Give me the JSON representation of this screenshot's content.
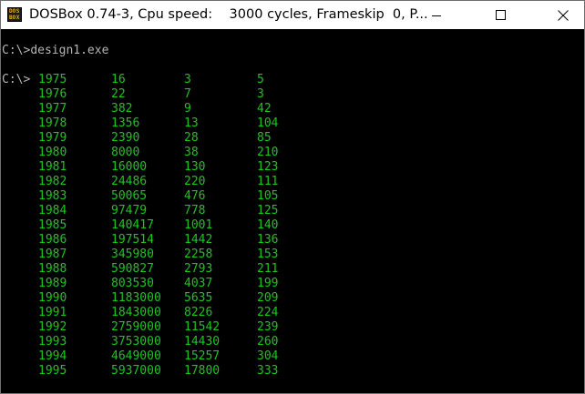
{
  "window": {
    "title": "DOSBox 0.74-3, Cpu speed:    3000 cycles, Frameskip  0, P...",
    "icon": "dosbox-icon",
    "icon_letters": [
      "DO",
      "S",
      "BO",
      "X"
    ]
  },
  "console": {
    "prompt": "C:\\>",
    "command": "design1.exe",
    "text_color": "#19c81b",
    "prompt_color": "#b5b5b5",
    "rows": [
      [
        "1975",
        "16",
        "3",
        "5"
      ],
      [
        "1976",
        "22",
        "7",
        "3"
      ],
      [
        "1977",
        "382",
        "9",
        "42"
      ],
      [
        "1978",
        "1356",
        "13",
        "104"
      ],
      [
        "1979",
        "2390",
        "28",
        "85"
      ],
      [
        "1980",
        "8000",
        "38",
        "210"
      ],
      [
        "1981",
        "16000",
        "130",
        "123"
      ],
      [
        "1982",
        "24486",
        "220",
        "111"
      ],
      [
        "1983",
        "50065",
        "476",
        "105"
      ],
      [
        "1984",
        "97479",
        "778",
        "125"
      ],
      [
        "1985",
        "140417",
        "1001",
        "140"
      ],
      [
        "1986",
        "197514",
        "1442",
        "136"
      ],
      [
        "1987",
        "345980",
        "2258",
        "153"
      ],
      [
        "1988",
        "590827",
        "2793",
        "211"
      ],
      [
        "1989",
        "803530",
        "4037",
        "199"
      ],
      [
        "1990",
        "1183000",
        "5635",
        "209"
      ],
      [
        "1991",
        "1843000",
        "8226",
        "224"
      ],
      [
        "1992",
        "2759000",
        "11542",
        "239"
      ],
      [
        "1993",
        "3753000",
        "14430",
        "260"
      ],
      [
        "1994",
        "4649000",
        "15257",
        "304"
      ],
      [
        "1995",
        "5937000",
        "17800",
        "333"
      ]
    ]
  }
}
